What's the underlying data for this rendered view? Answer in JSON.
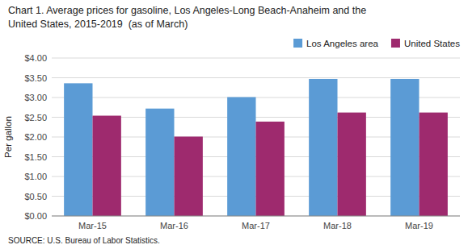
{
  "chart_data": {
    "type": "bar",
    "title": "Chart 1. Average prices for gasoline, Los Angeles-Long Beach-Anaheim and the",
    "subtitle": "United States, 2015-2019  (as of March)",
    "y_label": "Per gallon",
    "annotations": [
      "SOURCE: U.S. Bureau of Labor Statistics."
    ],
    "categories": [
      "Mar-15",
      "Mar-16",
      "Mar-17",
      "Mar-18",
      "Mar-19"
    ],
    "series": [
      {
        "name": "Los Angeles area",
        "color": "#5B9BD5",
        "values": [
          3.36,
          2.72,
          3.01,
          3.47,
          3.47
        ]
      },
      {
        "name": "United States",
        "color": "#9E2A6E",
        "values": [
          2.54,
          2.01,
          2.39,
          2.62,
          2.62
        ]
      }
    ],
    "ylim": [
      0,
      4.0
    ],
    "yticks": [
      {
        "value": 0.0,
        "label": "$0.00"
      },
      {
        "value": 0.5,
        "label": "$0.50"
      },
      {
        "value": 1.0,
        "label": "$1.00"
      },
      {
        "value": 1.5,
        "label": "$1.50"
      },
      {
        "value": 2.0,
        "label": "$2.00"
      },
      {
        "value": 2.5,
        "label": "$2.50"
      },
      {
        "value": 3.0,
        "label": "$3.00"
      },
      {
        "value": 3.5,
        "label": "$3.50"
      },
      {
        "value": 4.0,
        "label": "$4.00"
      }
    ],
    "grid": true,
    "legend": "upper right"
  }
}
